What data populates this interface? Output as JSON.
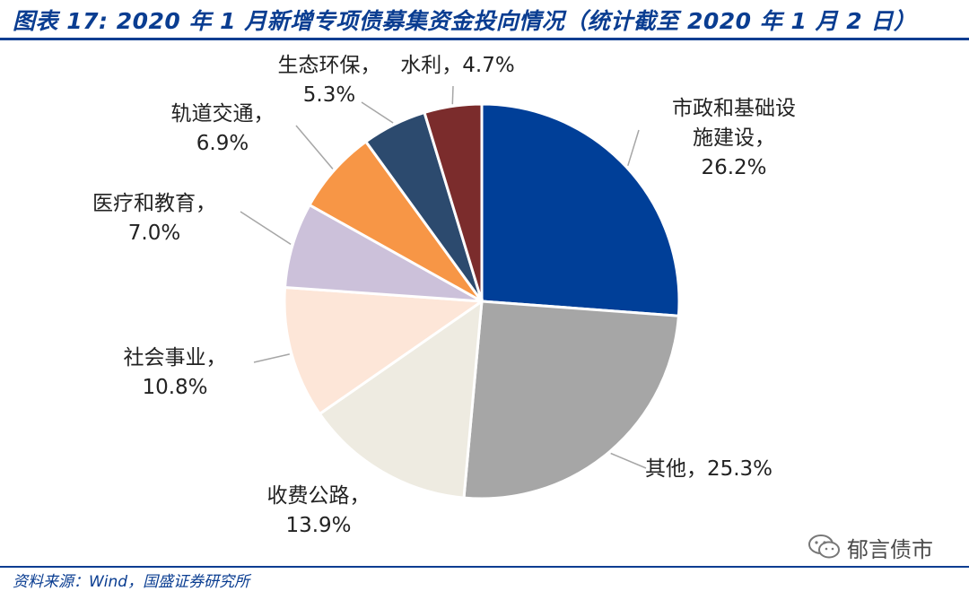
{
  "header": {
    "title": "图表 17: 2020 年 1 月新增专项债募集资金投向情况（统计截至 2020 年 1 月 2 日）"
  },
  "footer": {
    "source": "资料来源：Wind，国盛证券研究所",
    "watermark": "郁言债市"
  },
  "chart_data": {
    "type": "pie",
    "title": "",
    "slices": [
      {
        "name": "市政和基础设施建设",
        "label_lines": [
          "市政和基础设",
          "施建设，",
          "26.2%"
        ],
        "pct_text": "26.2%",
        "value": 26.2,
        "color": "#003f98"
      },
      {
        "name": "其他",
        "label_lines": [
          "其他，25.3%"
        ],
        "pct_text": "25.3%",
        "value": 25.3,
        "color": "#a6a6a6"
      },
      {
        "name": "收费公路",
        "label_lines": [
          "收费公路，",
          "13.9%"
        ],
        "pct_text": "13.9%",
        "value": 13.9,
        "color": "#eeebe1"
      },
      {
        "name": "社会事业",
        "label_lines": [
          "社会事业，",
          "10.8%"
        ],
        "pct_text": "10.8%",
        "value": 10.8,
        "color": "#fde6d8"
      },
      {
        "name": "医疗和教育",
        "label_lines": [
          "医疗和教育，",
          "7.0%"
        ],
        "pct_text": "7.0%",
        "value": 7.0,
        "color": "#ccc1da"
      },
      {
        "name": "轨道交通",
        "label_lines": [
          "轨道交通，",
          "6.9%"
        ],
        "pct_text": "6.9%",
        "value": 6.9,
        "color": "#f79646"
      },
      {
        "name": "生态环保",
        "label_lines": [
          "生态环保，",
          "5.3%"
        ],
        "pct_text": "5.3%",
        "value": 5.3,
        "color": "#2c4a6e"
      },
      {
        "name": "水利",
        "label_lines": [
          "水利，4.7%"
        ],
        "pct_text": "4.7%",
        "value": 4.7,
        "color": "#7b2c2c"
      }
    ]
  }
}
